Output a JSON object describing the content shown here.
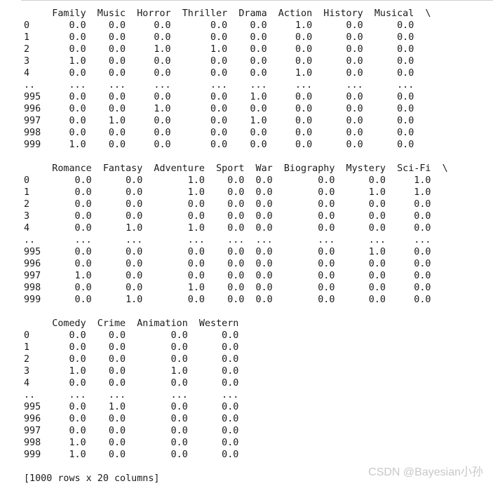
{
  "blocks": [
    {
      "lines": [
        "     Family  Music  Horror  Thriller  Drama  Action  History  Musical  \\",
        "0       0.0    0.0     0.0       0.0    0.0     1.0      0.0      0.0",
        "1       0.0    0.0     0.0       0.0    0.0     0.0      0.0      0.0",
        "2       0.0    0.0     1.0       1.0    0.0     0.0      0.0      0.0",
        "3       1.0    0.0     0.0       0.0    0.0     0.0      0.0      0.0",
        "4       0.0    0.0     0.0       0.0    0.0     1.0      0.0      0.0",
        "..      ...    ...     ...       ...    ...     ...      ...      ...",
        "995     0.0    0.0     0.0       0.0    1.0     0.0      0.0      0.0",
        "996     0.0    0.0     1.0       0.0    0.0     0.0      0.0      0.0",
        "997     0.0    1.0     0.0       0.0    1.0     0.0      0.0      0.0",
        "998     0.0    0.0     0.0       0.0    0.0     0.0      0.0      0.0",
        "999     1.0    0.0     0.0       0.0    0.0     0.0      0.0      0.0"
      ]
    },
    {
      "lines": [
        "     Romance  Fantasy  Adventure  Sport  War  Biography  Mystery  Sci-Fi  \\",
        "0        0.0      0.0        1.0    0.0  0.0        0.0      0.0     1.0",
        "1        0.0      0.0        1.0    0.0  0.0        0.0      1.0     1.0",
        "2        0.0      0.0        0.0    0.0  0.0        0.0      0.0     0.0",
        "3        0.0      0.0        0.0    0.0  0.0        0.0      0.0     0.0",
        "4        0.0      1.0        1.0    0.0  0.0        0.0      0.0     0.0",
        "..       ...      ...        ...    ...  ...        ...      ...     ...",
        "995      0.0      0.0        0.0    0.0  0.0        0.0      1.0     0.0",
        "996      0.0      0.0        0.0    0.0  0.0        0.0      0.0     0.0",
        "997      1.0      0.0        0.0    0.0  0.0        0.0      0.0     0.0",
        "998      0.0      0.0        1.0    0.0  0.0        0.0      0.0     0.0",
        "999      0.0      1.0        0.0    0.0  0.0        0.0      0.0     0.0"
      ]
    },
    {
      "lines": [
        "     Comedy  Crime  Animation  Western",
        "0       0.0    0.0        0.0      0.0",
        "1       0.0    0.0        0.0      0.0",
        "2       0.0    0.0        0.0      0.0",
        "3       1.0    0.0        1.0      0.0",
        "4       0.0    0.0        0.0      0.0",
        "..      ...    ...        ...      ...",
        "995     0.0    1.0        0.0      0.0",
        "996     0.0    0.0        0.0      0.0",
        "997     0.0    0.0        0.0      0.0",
        "998     1.0    0.0        0.0      0.0",
        "999     1.0    0.0        0.0      0.0"
      ]
    }
  ],
  "summary": "[1000 rows x 20 columns]",
  "watermark": "CSDN @Bayesian小孙"
}
